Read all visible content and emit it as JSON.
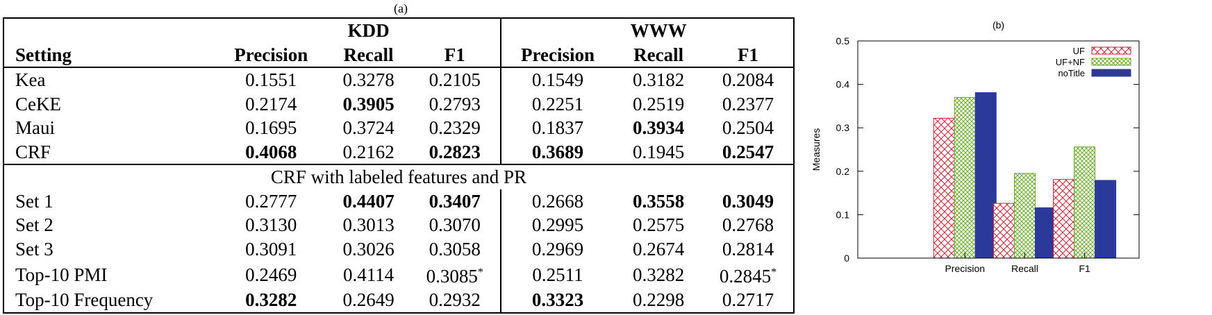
{
  "table": {
    "caption": "(a)",
    "group_kdd": "KDD",
    "group_www": "WWW",
    "col_setting": "Setting",
    "cols": [
      "Precision",
      "Recall",
      "F1",
      "Precision",
      "Recall",
      "F1"
    ],
    "section_label": "CRF with labeled features and PR",
    "block1": [
      {
        "name": "Kea",
        "vals": [
          "0.1551",
          "0.3278",
          "0.2105",
          "0.1549",
          "0.3182",
          "0.2084"
        ],
        "bold": []
      },
      {
        "name": "CeKE",
        "vals": [
          "0.2174",
          "0.3905",
          "0.2793",
          "0.2251",
          "0.2519",
          "0.2377"
        ],
        "bold": [
          1
        ]
      },
      {
        "name": "Maui",
        "vals": [
          "0.1695",
          "0.3724",
          "0.2329",
          "0.1837",
          "0.3934",
          "0.2504"
        ],
        "bold": [
          4
        ]
      },
      {
        "name": "CRF",
        "vals": [
          "0.4068",
          "0.2162",
          "0.2823",
          "0.3689",
          "0.1945",
          "0.2547"
        ],
        "bold": [
          0,
          2,
          3,
          5
        ]
      }
    ],
    "block2": [
      {
        "name": "Set 1",
        "vals": [
          "0.2777",
          "0.4407",
          "0.3407",
          "0.2668",
          "0.3558",
          "0.3049"
        ],
        "bold": [
          1,
          2,
          4,
          5
        ]
      },
      {
        "name": "Set 2",
        "vals": [
          "0.3130",
          "0.3013",
          "0.3070",
          "0.2995",
          "0.2575",
          "0.2768"
        ],
        "bold": []
      },
      {
        "name": "Set 3",
        "vals": [
          "0.3091",
          "0.3026",
          "0.3058",
          "0.2969",
          "0.2674",
          "0.2814"
        ],
        "bold": []
      },
      {
        "name": "Top-10 PMI",
        "vals": [
          "0.2469",
          "0.4114",
          "0.3085",
          "0.2511",
          "0.3282",
          "0.2845"
        ],
        "bold": [],
        "star": [
          2,
          5
        ]
      },
      {
        "name": "Top-10 Frequency",
        "vals": [
          "0.3282",
          "0.2649",
          "0.2932",
          "0.3323",
          "0.2298",
          "0.2717"
        ],
        "bold": [
          0,
          3
        ]
      }
    ],
    "star_mark": "*"
  },
  "chart_data": {
    "type": "bar",
    "title": "(b)",
    "ylabel": "Measures",
    "xlabel": "",
    "categories": [
      "Precision",
      "Recall",
      "F1"
    ],
    "ylim": [
      0,
      0.5
    ],
    "yticks": [
      "0",
      "0.1",
      "0.2",
      "0.3",
      "0.4",
      "0.5"
    ],
    "series": [
      {
        "name": "UF",
        "values": [
          0.322,
          0.126,
          0.181
        ],
        "color": "#cc2233",
        "pattern": "crosshatch"
      },
      {
        "name": "UF+NF",
        "values": [
          0.37,
          0.195,
          0.256
        ],
        "color": "#6aaa2a",
        "pattern": "dots"
      },
      {
        "name": "noTitle",
        "values": [
          0.381,
          0.116,
          0.179
        ],
        "color": "#2b3a9a",
        "pattern": "solid"
      }
    ],
    "legend": "top-right",
    "grid": false
  }
}
